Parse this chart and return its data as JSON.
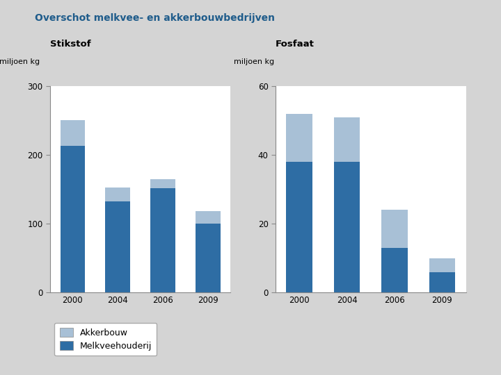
{
  "title": "Overschot melkvee- en akkerbouwbedrijven",
  "left_subtitle": "Stikstof",
  "right_subtitle": "Fosfaat",
  "categories": [
    "2000",
    "2004",
    "2006",
    "2009"
  ],
  "stikstof_melkvee": [
    213,
    133,
    152,
    100
  ],
  "stikstof_akkerbouw": [
    38,
    20,
    13,
    18
  ],
  "fosfaat_melkvee": [
    38,
    38,
    13,
    6
  ],
  "fosfaat_akkerbouw": [
    14,
    13,
    11,
    4
  ],
  "stikstof_ylim": [
    0,
    300
  ],
  "stikstof_yticks": [
    0,
    100,
    200,
    300
  ],
  "fosfaat_ylim": [
    0,
    60
  ],
  "fosfaat_yticks": [
    0,
    20,
    40,
    60
  ],
  "ylabel_text": "miljoen kg",
  "color_melkvee": "#2E6DA4",
  "color_akkerbouw": "#A8C0D6",
  "background_color": "#D4D4D4",
  "plot_bg_color": "#FFFFFF",
  "legend_akkerbouw": "Akkerbouw",
  "legend_melkvee": "Melkveehouderij",
  "title_color": "#1F5C8B",
  "subtitle_color": "#000000",
  "bar_width": 0.55
}
